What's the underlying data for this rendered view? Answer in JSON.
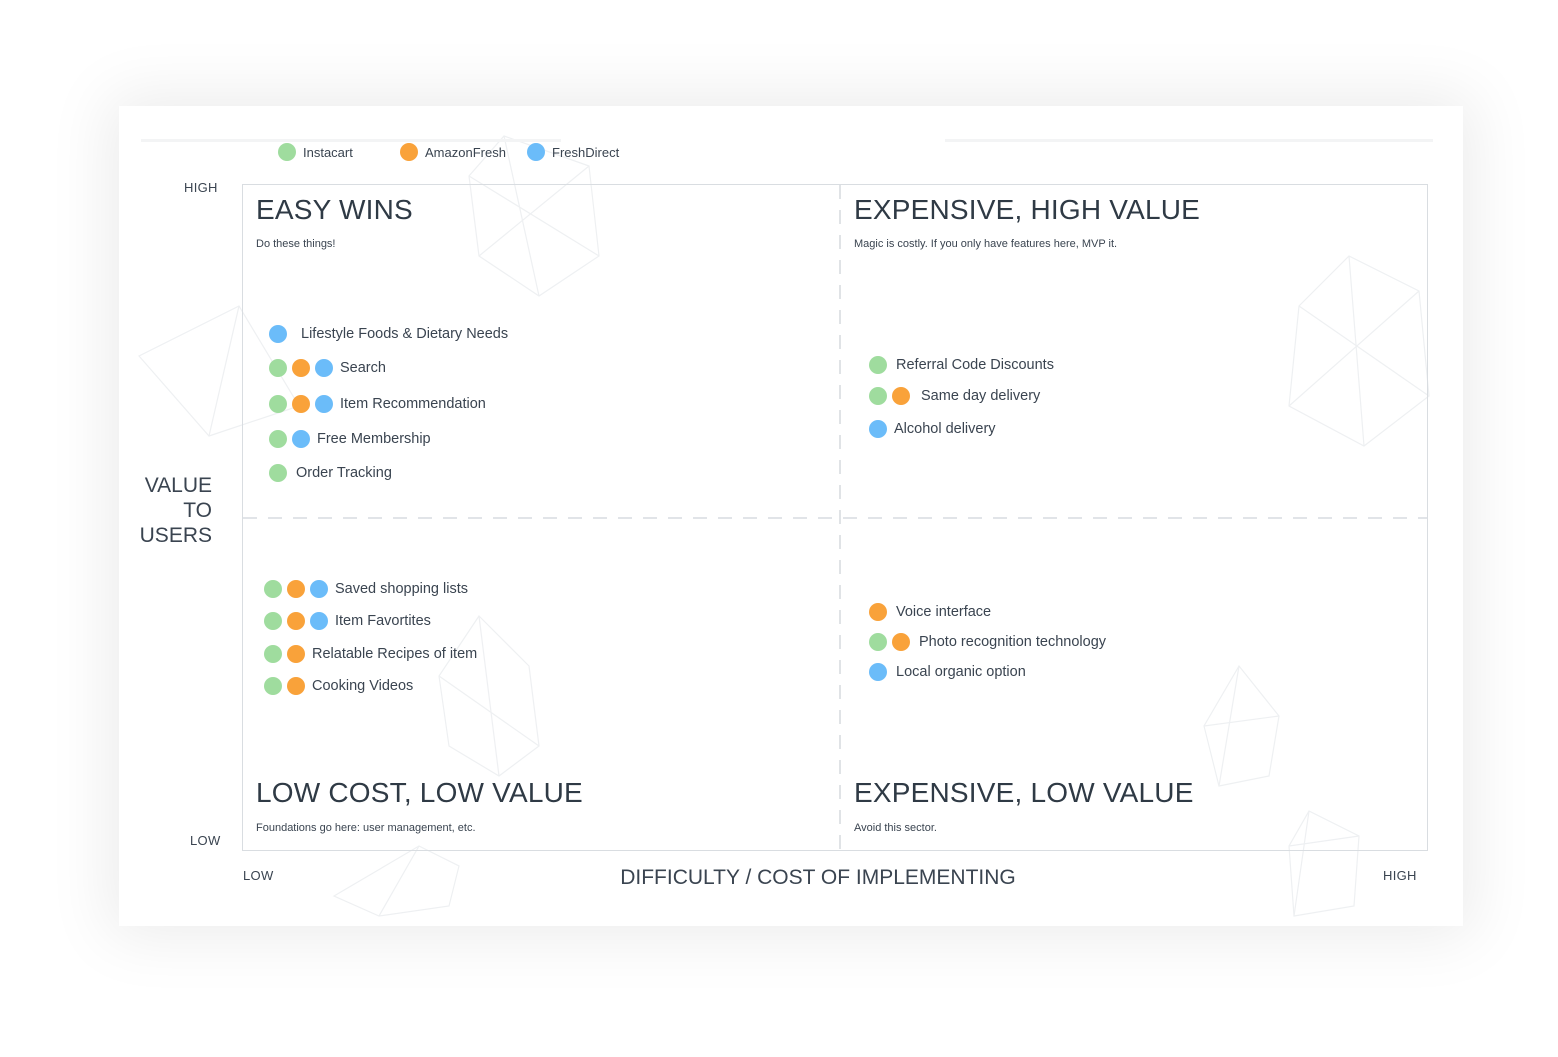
{
  "colors": {
    "instacart": "#9fdc9e",
    "amazonfresh": "#f9a23a",
    "freshdirect": "#6bbcf9"
  },
  "legend": [
    {
      "label": "Instacart",
      "key": "instacart"
    },
    {
      "label": "AmazonFresh",
      "key": "amazonfresh"
    },
    {
      "label": "FreshDirect",
      "key": "freshdirect"
    }
  ],
  "y_axis": {
    "high": "HIGH",
    "low": "LOW",
    "title": [
      "VALUE",
      "TO",
      "USERS"
    ]
  },
  "x_axis": {
    "low": "LOW",
    "high": "HIGH",
    "title": "DIFFICULTY / COST OF IMPLEMENTING"
  },
  "quadrants": [
    {
      "title": "EASY WINS",
      "subtitle": "Do these things!",
      "features": [
        {
          "label": "Lifestyle Foods & Dietary Needs",
          "providers": [
            "freshdirect"
          ]
        },
        {
          "label": "Search",
          "providers": [
            "instacart",
            "amazonfresh",
            "freshdirect"
          ]
        },
        {
          "label": "Item Recommendation",
          "providers": [
            "instacart",
            "amazonfresh",
            "freshdirect"
          ]
        },
        {
          "label": "Free Membership",
          "providers": [
            "instacart",
            "freshdirect"
          ]
        },
        {
          "label": "Order Tracking",
          "providers": [
            "instacart"
          ]
        }
      ]
    },
    {
      "title": "EXPENSIVE, HIGH VALUE",
      "subtitle": "Magic is costly. If you only have features here, MVP it.",
      "features": [
        {
          "label": "Referral Code Discounts",
          "providers": [
            "instacart"
          ]
        },
        {
          "label": "Same day delivery",
          "providers": [
            "instacart",
            "amazonfresh"
          ]
        },
        {
          "label": "Alcohol delivery",
          "providers": [
            "freshdirect"
          ]
        }
      ]
    },
    {
      "title": "LOW COST, LOW VALUE",
      "subtitle": "Foundations go here: user management, etc.",
      "features": [
        {
          "label": "Saved shopping lists",
          "providers": [
            "instacart",
            "amazonfresh",
            "freshdirect"
          ]
        },
        {
          "label": "Item Favortites",
          "providers": [
            "instacart",
            "amazonfresh",
            "freshdirect"
          ]
        },
        {
          "label": "Relatable Recipes of item",
          "providers": [
            "instacart",
            "amazonfresh"
          ]
        },
        {
          "label": "Cooking Videos",
          "providers": [
            "instacart",
            "amazonfresh"
          ]
        }
      ]
    },
    {
      "title": "EXPENSIVE, LOW VALUE",
      "subtitle": "Avoid this sector.",
      "features": [
        {
          "label": "Voice interface",
          "providers": [
            "amazonfresh"
          ]
        },
        {
          "label": "Photo recognition technology",
          "providers": [
            "instacart",
            "amazonfresh"
          ]
        },
        {
          "label": "Local organic option",
          "providers": [
            "freshdirect"
          ]
        }
      ]
    }
  ]
}
